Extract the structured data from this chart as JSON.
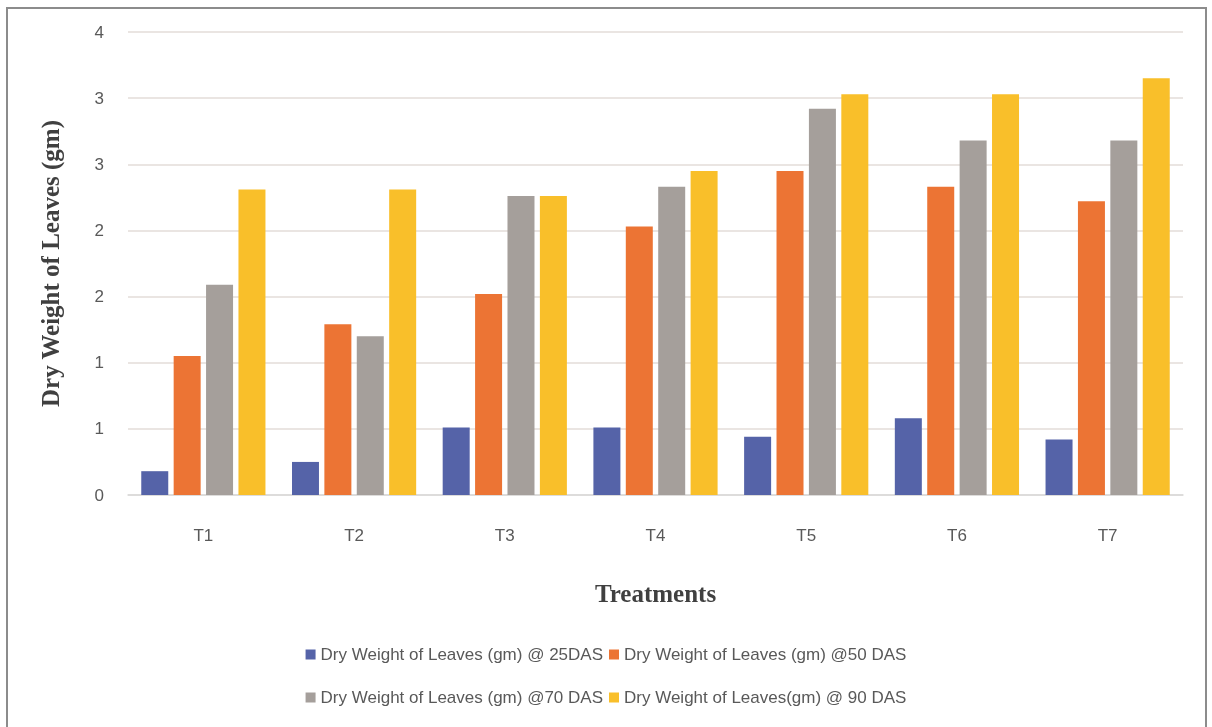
{
  "chart_data": {
    "type": "bar",
    "xlabel": "Treatments",
    "ylabel": "Dry Weight of Leaves (gm)",
    "categories": [
      "T1",
      "T2",
      "T3",
      "T4",
      "T5",
      "T6",
      "T7"
    ],
    "series": [
      {
        "name": "Dry Weight of Leaves (gm) @ 25DAS",
        "color": "#5563a8",
        "values": [
          0.18,
          0.25,
          0.51,
          0.51,
          0.44,
          0.58,
          0.42
        ]
      },
      {
        "name": "Dry Weight of Leaves (gm) @50 DAS",
        "color": "#ec7434",
        "values": [
          1.05,
          1.29,
          1.52,
          2.03,
          2.45,
          2.33,
          2.22
        ]
      },
      {
        "name": "Dry Weight of Leaves (gm) @70 DAS",
        "color": "#a59f9b",
        "values": [
          1.59,
          1.2,
          2.26,
          2.33,
          2.92,
          2.68,
          2.68
        ]
      },
      {
        "name": "Dry Weight of Leaves(gm) @ 90 DAS",
        "color": "#f9bf2a",
        "values": [
          2.31,
          2.31,
          2.26,
          2.45,
          3.03,
          3.03,
          3.15
        ]
      }
    ],
    "ylim": [
      0,
      3.5
    ],
    "yticks": [
      0,
      {
        "value": 0.5,
        "label": "1"
      },
      1,
      {
        "value": 1.5,
        "label": "2"
      },
      2,
      {
        "value": 2.5,
        "label": "3"
      },
      3,
      {
        "value": 3.5,
        "label": "4"
      }
    ],
    "grid": "y",
    "legend": "bottom"
  }
}
